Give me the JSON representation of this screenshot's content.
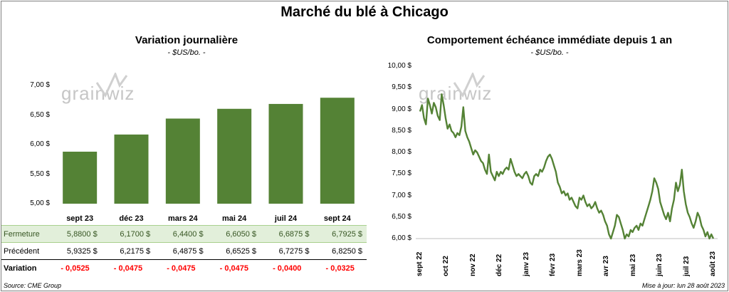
{
  "title": "Marché du blé à Chicago",
  "watermark": "grainwiz",
  "left_chart": {
    "title": "Variation journalière",
    "unit": "- $US/bo. -",
    "y_ticks": [
      "7,00 $",
      "6,50 $",
      "6,00 $",
      "5,50 $",
      "5,00 $"
    ],
    "colors": {
      "bar": "#548235"
    }
  },
  "right_chart": {
    "title": "Comportement échéance immédiate depuis 1 an",
    "unit": "- $US/bo. -",
    "y_ticks": [
      "10,00 $",
      "9,50 $",
      "9,00 $",
      "8,50 $",
      "8,00 $",
      "7,50 $",
      "7,00 $",
      "6,50 $",
      "6,00 $"
    ],
    "x_ticks": [
      "sept 22",
      "oct 22",
      "nov 22",
      "déc 22",
      "janv 23",
      "févr 23",
      "mars 23",
      "avr 23",
      "mai 23",
      "juin 23",
      "juil 23",
      "août 23"
    ],
    "colors": {
      "line": "#548235"
    }
  },
  "table": {
    "row_labels": {
      "close": "Fermeture",
      "prev": "Précédent",
      "var": "Variation"
    },
    "close": [
      "5,8800  $",
      "6,1700  $",
      "6,4400  $",
      "6,6050  $",
      "6,6875  $",
      "6,7925  $"
    ],
    "prev": [
      "5,9325  $",
      "6,2175  $",
      "6,4875  $",
      "6,6525  $",
      "6,7275  $",
      "6,8250  $"
    ],
    "var": [
      "- 0,0525",
      "- 0,0475",
      "- 0,0475",
      "- 0,0475",
      "- 0,0400",
      "- 0,0325"
    ]
  },
  "footer": {
    "source": "Source: CME Group",
    "updated": "Mise à jour: lun 28 août 2023"
  },
  "chart_data": [
    {
      "type": "bar",
      "title": "Variation journalière",
      "ylabel": "- $US/bo. -",
      "categories": [
        "sept 23",
        "déc 23",
        "mars 24",
        "mai 24",
        "juil 24",
        "sept 24"
      ],
      "values": [
        5.88,
        6.17,
        6.44,
        6.605,
        6.6875,
        6.7925
      ],
      "ylim": [
        5.0,
        7.0
      ]
    },
    {
      "type": "line",
      "title": "Comportement échéance immédiate depuis 1 an",
      "ylabel": "- $US/bo. -",
      "ylim": [
        6.0,
        10.0
      ],
      "x_range": [
        "sept 22",
        "août 23"
      ],
      "series": [
        {
          "values": [
            8.95,
            9.1,
            8.8,
            8.65,
            9.25,
            9.1,
            8.9,
            9.15,
            9.05,
            8.85,
            8.75,
            9.35,
            9.1,
            8.8,
            8.55,
            8.65,
            8.5,
            8.45,
            8.35,
            8.45,
            8.4,
            8.6,
            9.05,
            8.5,
            8.35,
            8.25,
            8.1,
            7.95,
            8.05,
            8.0,
            7.9,
            7.8,
            7.75,
            7.6,
            7.5,
            7.95,
            7.55,
            7.45,
            7.35,
            7.55,
            7.45,
            7.55,
            7.5,
            7.6,
            7.65,
            7.6,
            7.85,
            7.7,
            7.55,
            7.45,
            7.5,
            7.45,
            7.4,
            7.5,
            7.55,
            7.45,
            7.3,
            7.25,
            7.45,
            7.5,
            7.45,
            7.6,
            7.55,
            7.65,
            7.8,
            7.9,
            7.95,
            7.85,
            7.7,
            7.55,
            7.3,
            7.2,
            7.05,
            7.1,
            7.0,
            7.05,
            6.9,
            6.95,
            6.85,
            6.75,
            6.7,
            6.95,
            6.9,
            7.0,
            6.85,
            6.75,
            6.8,
            6.7,
            6.75,
            6.85,
            6.7,
            6.6,
            6.65,
            6.55,
            6.4,
            6.3,
            6.1,
            6.0,
            6.15,
            6.3,
            6.55,
            6.5,
            6.35,
            6.2,
            6.0,
            6.1,
            6.05,
            6.2,
            6.15,
            6.25,
            6.3,
            6.2,
            6.35,
            6.3,
            6.45,
            6.6,
            6.75,
            6.9,
            7.1,
            7.4,
            7.3,
            7.15,
            6.85,
            6.7,
            6.55,
            6.45,
            6.6,
            6.4,
            6.7,
            6.9,
            7.3,
            7.1,
            7.25,
            7.6,
            7.1,
            6.8,
            6.6,
            6.5,
            6.35,
            6.25,
            6.4,
            6.6,
            6.5,
            6.3,
            6.2,
            6.05,
            6.15,
            6.0,
            6.1,
            6.0
          ]
        }
      ]
    }
  ]
}
